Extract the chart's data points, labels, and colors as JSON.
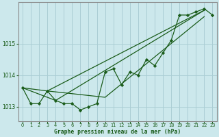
{
  "title": "Graphe pression niveau de la mer (hPa)",
  "background_color": "#cce8ec",
  "grid_color": "#aacdd4",
  "line_color": "#1a5c1a",
  "text_color": "#1a5c1a",
  "xlim": [
    -0.5,
    23.5
  ],
  "ylim": [
    1012.55,
    1016.3
  ],
  "yticks": [
    1013,
    1014,
    1015
  ],
  "main_y": [
    1013.6,
    1013.1,
    1013.1,
    1013.5,
    1013.2,
    1013.1,
    1013.1,
    1012.9,
    1013.0,
    1013.1,
    1014.1,
    1014.2,
    1013.7,
    1014.1,
    1014.0,
    1014.5,
    1014.3,
    1014.7,
    1015.1,
    1015.9,
    1015.9,
    1016.0,
    1016.1,
    1015.9
  ],
  "trend1_x": [
    0,
    4,
    22
  ],
  "trend1_y": [
    1013.6,
    1013.2,
    1016.05
  ],
  "trend2_x": [
    0,
    3,
    22
  ],
  "trend2_y": [
    1013.6,
    1013.5,
    1016.05
  ],
  "trend3_x": [
    3,
    10,
    22
  ],
  "trend3_y": [
    1013.5,
    1013.3,
    1015.85
  ]
}
